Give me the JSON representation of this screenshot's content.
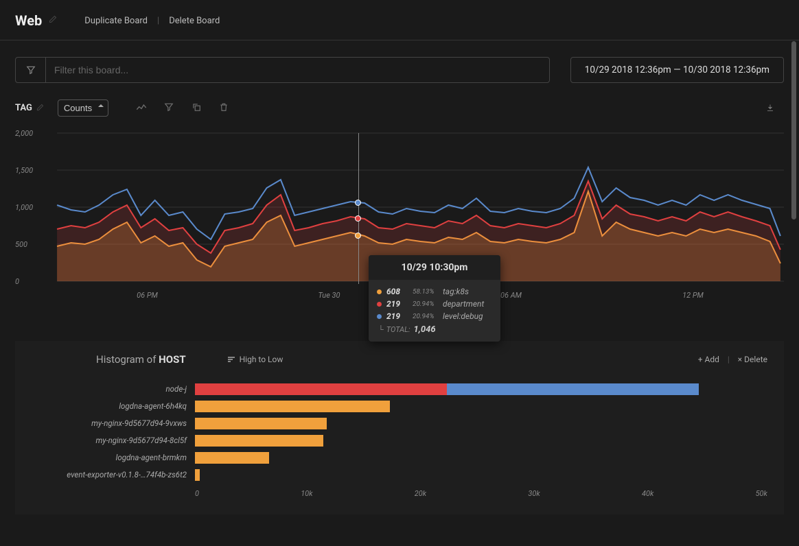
{
  "header": {
    "title": "Web",
    "duplicate_label": "Duplicate Board",
    "delete_label": "Delete Board"
  },
  "filter": {
    "placeholder": "Filter this board...",
    "date_range": "10/29 2018 12:36pm — 10/30 2018 12:36pm"
  },
  "toolbar": {
    "tag_label": "TAG",
    "select_value": "Counts"
  },
  "chart": {
    "y_ticks": [
      "2,000",
      "1,500",
      "1,000",
      "500",
      "0"
    ],
    "x_ticks": [
      "06 PM",
      "Tue 30",
      "06 AM",
      "12 PM"
    ],
    "colors": {
      "s1": "#f0a03c",
      "s2": "#e04040",
      "s3": "#5a8acc",
      "grid": "#333333",
      "bg": "#1a1a1a"
    },
    "tooltip": {
      "time": "10/29 10:30pm",
      "rows": [
        {
          "color": "#f0a03c",
          "value": "608",
          "pct": "58.13%",
          "name": "tag:k8s"
        },
        {
          "color": "#e04040",
          "value": "219",
          "pct": "20.94%",
          "name": "department"
        },
        {
          "color": "#5a8acc",
          "value": "219",
          "pct": "20.94%",
          "name": "level:debug"
        }
      ],
      "total_label": "TOTAL:",
      "total_value": "1,046"
    }
  },
  "histogram": {
    "title_prefix": "Histogram of ",
    "title_bold": "HOST",
    "sort_label": "High to Low",
    "add_label": "+ Add",
    "delete_label": "× Delete",
    "x_ticks": [
      "0",
      "10k",
      "20k",
      "30k",
      "40k",
      "50k"
    ],
    "x_max": 50000,
    "rows": [
      {
        "label": "node-j",
        "segments": [
          {
            "value": 22000,
            "color": "#e04040"
          },
          {
            "value": 22000,
            "color": "#5a8acc"
          }
        ]
      },
      {
        "label": "logdna-agent-6h4kq",
        "segments": [
          {
            "value": 17000,
            "color": "#f0a03c"
          }
        ]
      },
      {
        "label": "my-nginx-9d5677d94-9vxws",
        "segments": [
          {
            "value": 11500,
            "color": "#f0a03c"
          }
        ]
      },
      {
        "label": "my-nginx-9d5677d94-8cl5f",
        "segments": [
          {
            "value": 11200,
            "color": "#f0a03c"
          }
        ]
      },
      {
        "label": "logdna-agent-brmkm",
        "segments": [
          {
            "value": 6500,
            "color": "#f0a03c"
          }
        ]
      },
      {
        "label": "event-exporter-v0.1.8-…74f4b-zs6t2",
        "segments": [
          {
            "value": 400,
            "color": "#f0a03c"
          }
        ]
      }
    ]
  }
}
